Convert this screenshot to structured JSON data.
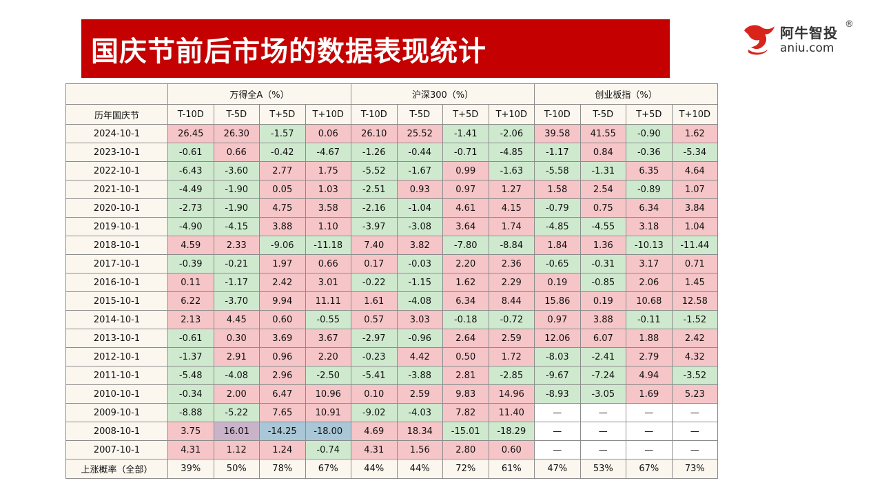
{
  "title": "国庆节前后市场的数据表现统计",
  "logo": {
    "brand": "阿牛智投",
    "reg_mark": "®",
    "domain": "aniu.com",
    "icon": "bull-head-icon",
    "accent_color": "#d9241c"
  },
  "colors": {
    "title_bg": "#c40000",
    "positive_cell": "#f5c5c8",
    "negative_cell": "#cfe9cf"
  },
  "table": {
    "row_header_label": "历年国庆节",
    "groups": [
      "万得全A（%）",
      "沪深300（%）",
      "创业板指（%）"
    ],
    "periods": [
      "T-10D",
      "T-5D",
      "T+5D",
      "T+10D"
    ],
    "rows": [
      {
        "date": "2024-10-1",
        "values": [
          "26.45",
          "26.30",
          "-1.57",
          "0.06",
          "26.10",
          "25.52",
          "-1.41",
          "-2.06",
          "39.58",
          "41.55",
          "-0.90",
          "1.62"
        ]
      },
      {
        "date": "2023-10-1",
        "values": [
          "-0.61",
          "0.66",
          "-0.42",
          "-4.67",
          "-1.26",
          "-0.44",
          "-0.71",
          "-4.85",
          "-1.17",
          "0.84",
          "-0.36",
          "-5.34"
        ]
      },
      {
        "date": "2022-10-1",
        "values": [
          "-6.43",
          "-3.60",
          "2.77",
          "1.75",
          "-5.52",
          "-1.67",
          "0.99",
          "-1.63",
          "-5.58",
          "-1.31",
          "6.35",
          "4.64"
        ]
      },
      {
        "date": "2021-10-1",
        "values": [
          "-4.49",
          "-1.90",
          "0.05",
          "1.03",
          "-2.51",
          "0.93",
          "0.97",
          "1.27",
          "1.58",
          "2.54",
          "-0.89",
          "1.07"
        ]
      },
      {
        "date": "2020-10-1",
        "values": [
          "-2.73",
          "-1.90",
          "4.75",
          "3.58",
          "-2.16",
          "-1.04",
          "4.61",
          "4.15",
          "-0.79",
          "0.75",
          "6.34",
          "3.84"
        ]
      },
      {
        "date": "2019-10-1",
        "values": [
          "-4.90",
          "-4.15",
          "3.88",
          "1.10",
          "-3.97",
          "-3.08",
          "3.64",
          "1.74",
          "-4.85",
          "-4.55",
          "3.18",
          "1.04"
        ]
      },
      {
        "date": "2018-10-1",
        "values": [
          "4.59",
          "2.33",
          "-9.06",
          "-11.18",
          "7.40",
          "3.82",
          "-7.80",
          "-8.84",
          "1.84",
          "1.36",
          "-10.13",
          "-11.44"
        ]
      },
      {
        "date": "2017-10-1",
        "values": [
          "-0.39",
          "-0.21",
          "1.97",
          "0.66",
          "0.17",
          "-0.03",
          "2.20",
          "2.36",
          "-0.65",
          "-0.31",
          "3.17",
          "0.71"
        ]
      },
      {
        "date": "2016-10-1",
        "values": [
          "0.11",
          "-1.17",
          "2.42",
          "3.01",
          "-0.22",
          "-1.15",
          "1.62",
          "2.29",
          "0.19",
          "-0.85",
          "2.06",
          "1.45"
        ]
      },
      {
        "date": "2015-10-1",
        "values": [
          "6.22",
          "-3.70",
          "9.94",
          "11.11",
          "1.61",
          "-4.08",
          "6.34",
          "8.44",
          "15.86",
          "0.19",
          "10.68",
          "12.58"
        ]
      },
      {
        "date": "2014-10-1",
        "values": [
          "2.13",
          "4.45",
          "0.60",
          "-0.55",
          "0.57",
          "3.03",
          "-0.18",
          "-0.72",
          "0.97",
          "3.88",
          "-0.11",
          "-1.52"
        ]
      },
      {
        "date": "2013-10-1",
        "values": [
          "-0.61",
          "0.30",
          "3.69",
          "3.67",
          "-2.97",
          "-0.96",
          "2.64",
          "2.59",
          "12.06",
          "6.07",
          "1.88",
          "2.42"
        ]
      },
      {
        "date": "2012-10-1",
        "values": [
          "-1.37",
          "2.91",
          "0.96",
          "2.20",
          "-0.23",
          "4.42",
          "0.50",
          "1.72",
          "-8.03",
          "-2.41",
          "2.79",
          "4.32"
        ]
      },
      {
        "date": "2011-10-1",
        "values": [
          "-5.48",
          "-4.08",
          "2.96",
          "-2.50",
          "-5.41",
          "-3.88",
          "2.81",
          "-2.85",
          "-9.67",
          "-7.24",
          "4.94",
          "-3.52"
        ]
      },
      {
        "date": "2010-10-1",
        "values": [
          "-0.34",
          "2.00",
          "6.47",
          "10.96",
          "0.10",
          "2.59",
          "9.83",
          "14.96",
          "-8.93",
          "-3.05",
          "1.69",
          "5.23"
        ]
      },
      {
        "date": "2009-10-1",
        "values": [
          "-8.88",
          "-5.22",
          "7.65",
          "10.91",
          "-9.02",
          "-4.03",
          "7.82",
          "11.40",
          "—",
          "—",
          "—",
          "—"
        ]
      },
      {
        "date": "2008-10-1",
        "values": [
          "3.75",
          "16.01",
          "-14.25",
          "-18.00",
          "4.69",
          "18.34",
          "-15.01",
          "-18.29",
          "—",
          "—",
          "—",
          "—"
        ]
      },
      {
        "date": "2007-10-1",
        "values": [
          "4.31",
          "1.12",
          "1.24",
          "-0.74",
          "4.31",
          "1.56",
          "2.80",
          "0.60",
          "—",
          "—",
          "—",
          "—"
        ]
      }
    ],
    "footer_label": "上涨概率（全部）",
    "footer_values": [
      "39%",
      "50%",
      "78%",
      "67%",
      "44%",
      "44%",
      "72%",
      "61%",
      "47%",
      "53%",
      "67%",
      "73%"
    ]
  }
}
